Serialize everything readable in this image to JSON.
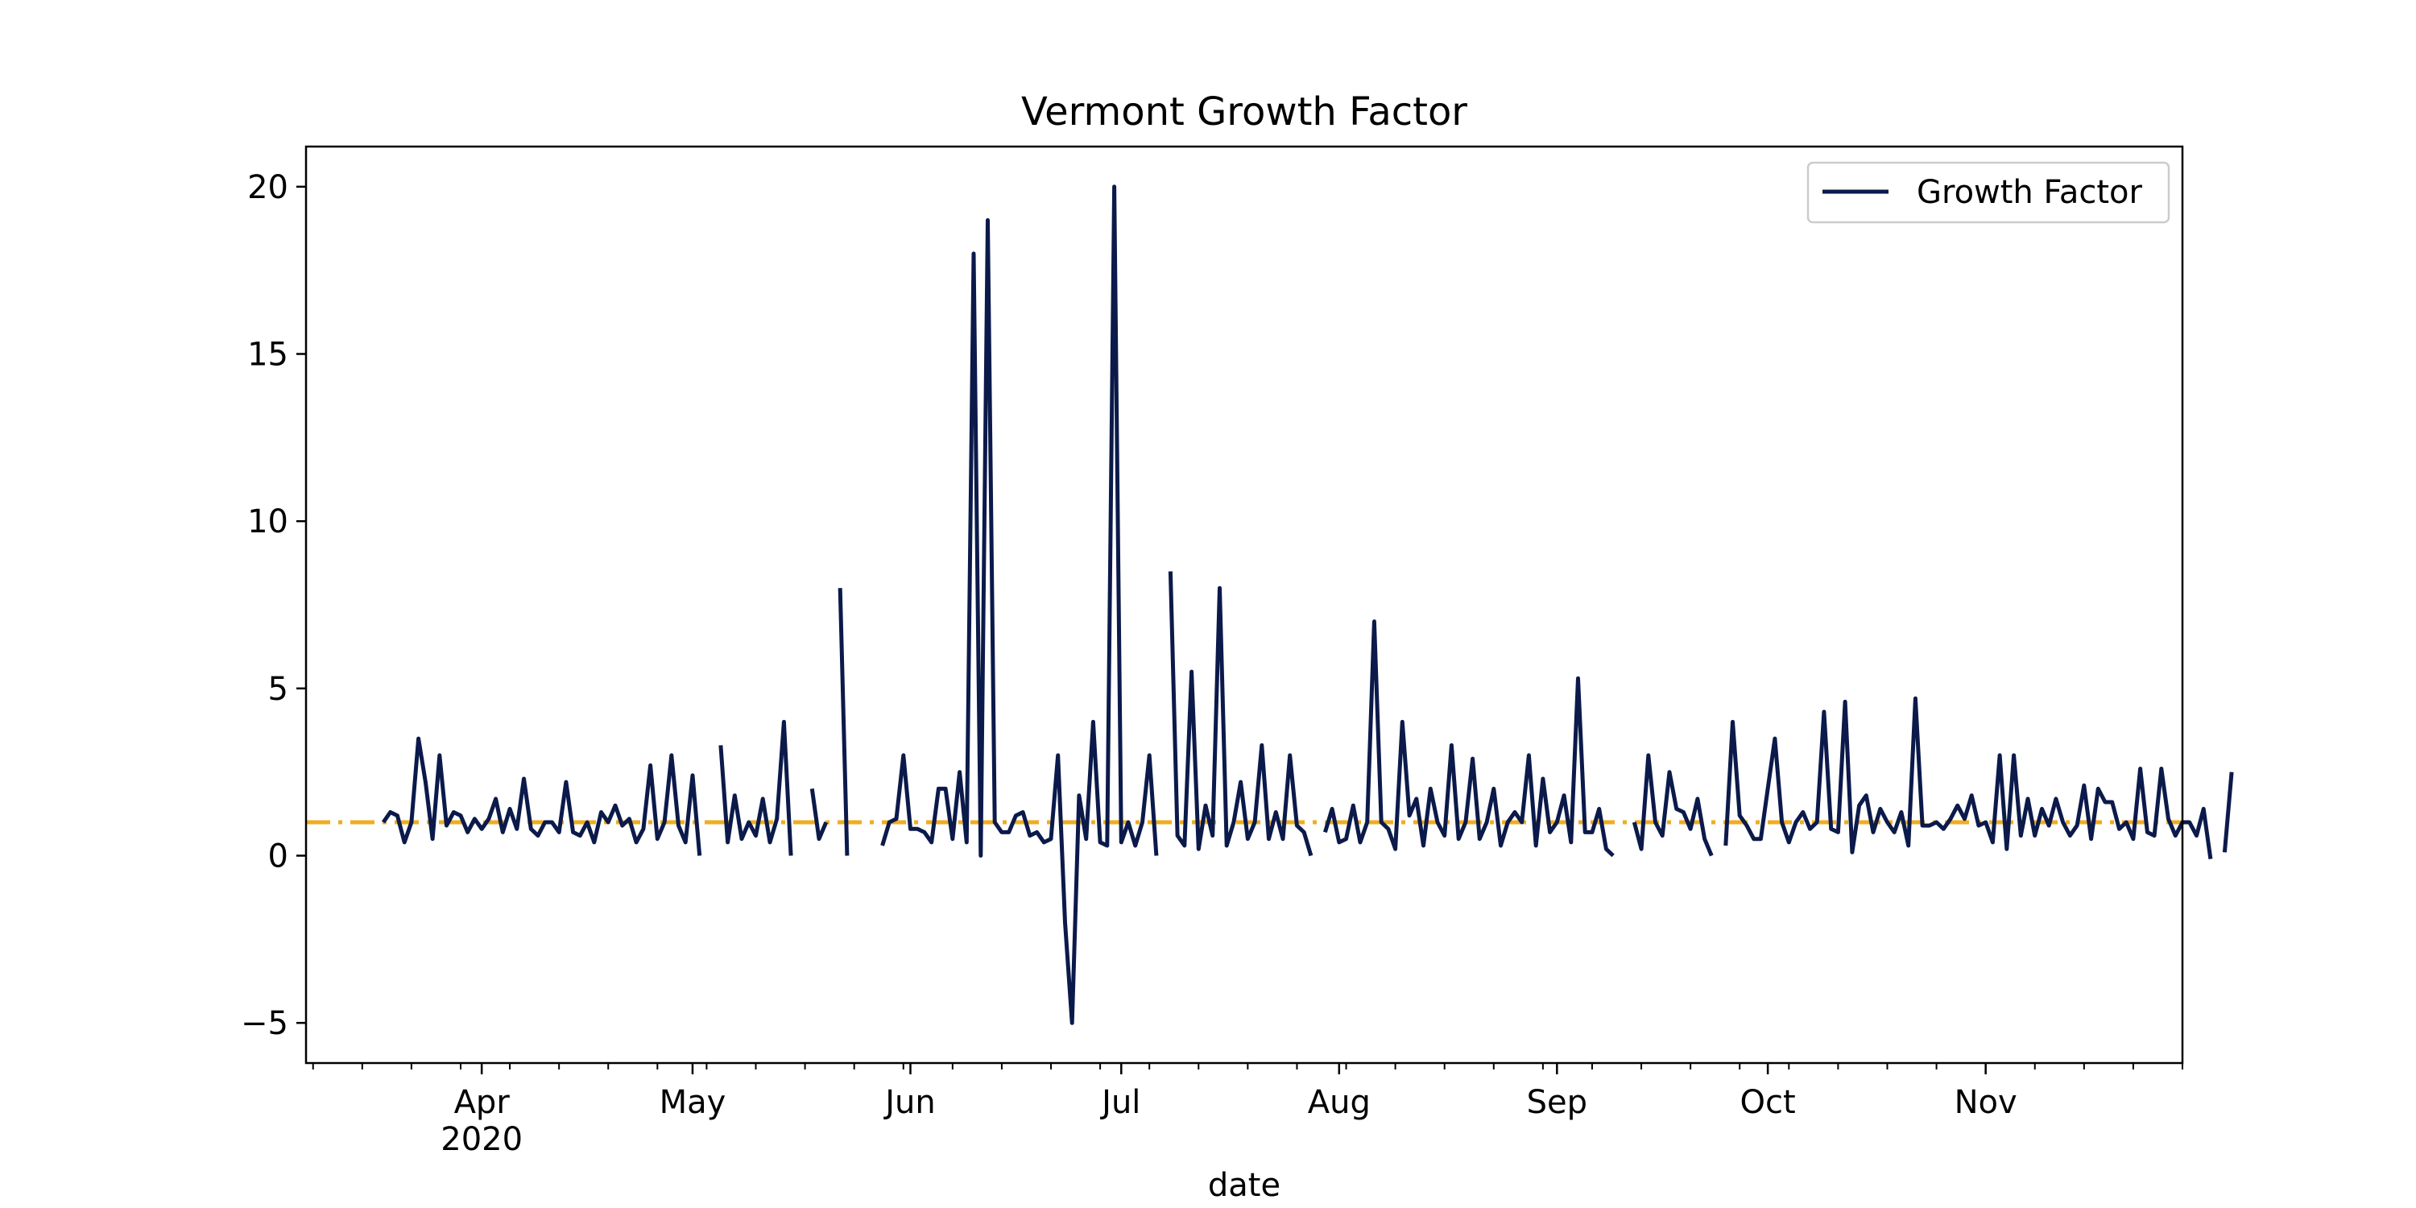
{
  "chart_data": {
    "type": "line",
    "title": "Vermont Growth Factor",
    "xlabel": "date",
    "ylabel": "",
    "xlim": [
      "2020-03-07",
      "2020-11-29"
    ],
    "ylim": [
      -6.2,
      21.2
    ],
    "y_ticks": [
      -5,
      0,
      5,
      10,
      15,
      20
    ],
    "x_ticks": [
      {
        "date": "2020-04-01",
        "label": "Apr",
        "sublabel": "2020"
      },
      {
        "date": "2020-05-01",
        "label": "May",
        "sublabel": ""
      },
      {
        "date": "2020-06-01",
        "label": "Jun",
        "sublabel": ""
      },
      {
        "date": "2020-07-01",
        "label": "Jul",
        "sublabel": ""
      },
      {
        "date": "2020-08-01",
        "label": "Aug",
        "sublabel": ""
      },
      {
        "date": "2020-09-01",
        "label": "Sep",
        "sublabel": ""
      },
      {
        "date": "2020-10-01",
        "label": "Oct",
        "sublabel": ""
      },
      {
        "date": "2020-11-01",
        "label": "Nov",
        "sublabel": ""
      }
    ],
    "legend": {
      "position": "top-right"
    },
    "grid": false,
    "reference_line": {
      "y": 1,
      "style": "dash-dot",
      "color": "#f0ac20"
    },
    "series": [
      {
        "name": "Growth Factor",
        "color": "#0b1a4a",
        "start_date": "2020-03-18",
        "values": [
          1.0,
          1.3,
          1.2,
          0.4,
          1.0,
          3.5,
          2.2,
          0.5,
          3.0,
          0.9,
          1.3,
          1.2,
          0.7,
          1.1,
          0.8,
          1.1,
          1.7,
          0.7,
          1.4,
          0.8,
          2.3,
          0.8,
          0.6,
          1.0,
          1.0,
          0.7,
          2.2,
          0.7,
          0.6,
          1.0,
          0.4,
          1.3,
          1.0,
          1.5,
          0.9,
          1.1,
          0.4,
          0.8,
          2.7,
          0.5,
          1.0,
          3.0,
          0.9,
          0.4,
          2.4,
          0.0,
          null,
          null,
          3.3,
          0.4,
          1.8,
          0.5,
          1.0,
          0.6,
          1.7,
          0.4,
          1.1,
          4.0,
          0.0,
          null,
          null,
          2.0,
          0.5,
          1.0,
          null,
          8.0,
          0.0,
          null,
          null,
          null,
          null,
          0.3,
          1.0,
          1.1,
          3.0,
          0.8,
          0.8,
          0.7,
          0.4,
          2.0,
          2.0,
          0.5,
          2.5,
          0.4,
          18.0,
          0.0,
          19.0,
          1.0,
          0.7,
          0.7,
          1.2,
          1.3,
          0.6,
          0.7,
          0.4,
          0.5,
          3.0,
          -2.0,
          -5.0,
          1.8,
          0.5,
          4.0,
          0.4,
          0.3,
          20.0,
          0.4,
          1.0,
          0.3,
          1.0,
          3.0,
          0.0,
          null,
          8.5,
          0.6,
          0.3,
          5.5,
          0.2,
          1.5,
          0.6,
          8.0,
          0.3,
          1.0,
          2.2,
          0.5,
          1.0,
          3.3,
          0.5,
          1.3,
          0.5,
          3.0,
          0.9,
          0.7,
          0.0,
          null,
          0.7,
          1.4,
          0.4,
          0.5,
          1.5,
          0.4,
          1.0,
          7.0,
          1.0,
          0.8,
          0.2,
          4.0,
          1.2,
          1.7,
          0.3,
          2.0,
          1.0,
          0.6,
          3.3,
          0.5,
          1.0,
          2.9,
          0.5,
          1.0,
          2.0,
          0.3,
          1.0,
          1.3,
          1.0,
          3.0,
          0.3,
          2.3,
          0.7,
          1.0,
          1.8,
          0.4,
          5.3,
          0.7,
          0.7,
          1.4,
          0.2,
          0.0,
          null,
          null,
          1.0,
          0.2,
          3.0,
          1.0,
          0.6,
          2.5,
          1.4,
          1.3,
          0.8,
          1.7,
          0.5,
          0.0,
          null,
          0.3,
          4.0,
          1.2,
          0.9,
          0.5,
          0.5,
          2.0,
          3.5,
          1.0,
          0.4,
          1.0,
          1.3,
          0.8,
          1.0,
          4.3,
          0.8,
          0.7,
          4.6,
          0.1,
          1.5,
          1.8,
          0.7,
          1.4,
          1.0,
          0.7,
          1.3,
          0.3,
          4.7,
          0.9,
          0.9,
          1.0,
          0.8,
          1.1,
          1.5,
          1.1,
          1.8,
          0.9,
          1.0,
          0.4,
          3.0,
          0.2,
          3.0,
          0.6,
          1.7,
          0.6,
          1.4,
          0.9,
          1.7,
          1.0,
          0.6,
          0.9,
          2.1,
          0.5,
          2.0,
          1.6,
          1.6,
          0.8,
          1.0,
          0.5,
          2.6,
          0.7,
          0.6,
          2.6,
          1.1,
          0.6,
          1.0,
          1.0,
          0.6,
          1.4,
          -0.1,
          null,
          0.1,
          2.5
        ]
      }
    ]
  }
}
